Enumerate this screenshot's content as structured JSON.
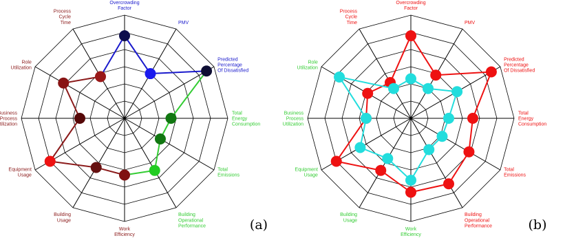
{
  "chart_data": [
    {
      "type": "radar",
      "panel_label": "(a)",
      "axes": [
        {
          "label": [
            "Overcrowding",
            "Factor"
          ],
          "color": "#1a1acc"
        },
        {
          "label": [
            "PMV"
          ],
          "color": "#1a1acc"
        },
        {
          "label": [
            "Predicted",
            "Percentage",
            "Of Dissatisfied"
          ],
          "color": "#1a1acc"
        },
        {
          "label": [
            "Total",
            "Energy",
            "Consumption"
          ],
          "color": "#33cc33"
        },
        {
          "label": [
            "Total",
            "Emissions"
          ],
          "color": "#33cc33"
        },
        {
          "label": [
            "Building",
            "Operational",
            "Performance"
          ],
          "color": "#33cc33"
        },
        {
          "label": [
            "Work",
            "Efficiency"
          ],
          "color": "#8b1a1a"
        },
        {
          "label": [
            "Building",
            "Usage"
          ],
          "color": "#8b1a1a"
        },
        {
          "label": [
            "Equipment",
            "Usage"
          ],
          "color": "#8b1a1a"
        },
        {
          "label": [
            "Business",
            "Process",
            "Utilization"
          ],
          "color": "#8b1a1a"
        },
        {
          "label": [
            "Role",
            "Utilization"
          ],
          "color": "#8b1a1a"
        },
        {
          "label": [
            "Process",
            "Cycle",
            "Time"
          ],
          "color": "#8b1a1a"
        }
      ],
      "scale": {
        "min": 0,
        "max": 6,
        "rings": 6
      },
      "series": [
        {
          "values": [
            4.8,
            3.0,
            5.5,
            2.7,
            2.4,
            3.5,
            3.3,
            3.3,
            5.0,
            2.6,
            4.1,
            2.8
          ],
          "point_colors": [
            "#0d0d4d",
            "#1a1aee",
            "#0d0d33",
            "#117711",
            "#117711",
            "#22cc22",
            "#801010",
            "#661111",
            "#ee1111",
            "#550808",
            "#881414",
            "#991818"
          ],
          "segment_colors": [
            "#1a1acc",
            "#1a1acc",
            "#33cc33",
            "#33cc33",
            "#33cc33",
            "#33cc33",
            "#8b1a1a",
            "#8b1a1a",
            "#8b1a1a",
            "#8b1a1a",
            "#8b1a1a",
            "#1a1acc"
          ]
        }
      ]
    },
    {
      "type": "radar",
      "panel_label": "(b)",
      "axes": [
        {
          "label": [
            "Overcrowding",
            "Factor"
          ],
          "color": "#ee1111"
        },
        {
          "label": [
            "PMV"
          ],
          "color": "#ee1111"
        },
        {
          "label": [
            "Predicted",
            "Percentage",
            "Of Dissatisfied"
          ],
          "color": "#ee1111"
        },
        {
          "label": [
            "Total",
            "Energy",
            "Consumption"
          ],
          "color": "#ee1111"
        },
        {
          "label": [
            "Total",
            "Emissions"
          ],
          "color": "#ee1111"
        },
        {
          "label": [
            "Building",
            "Operational",
            "Performance"
          ],
          "color": "#ee1111"
        },
        {
          "label": [
            "Work",
            "Efficiency"
          ],
          "color": "#33cc33"
        },
        {
          "label": [
            "Building",
            "Usage"
          ],
          "color": "#33cc33"
        },
        {
          "label": [
            "Equipment",
            "Usage"
          ],
          "color": "#33cc33"
        },
        {
          "label": [
            "Business",
            "Process",
            "Utilization"
          ],
          "color": "#33cc33"
        },
        {
          "label": [
            "Role",
            "Utilization"
          ],
          "color": "#33cc33"
        },
        {
          "label": [
            "Process",
            "Cycle",
            "Time"
          ],
          "color": "#ee1111"
        }
      ],
      "scale": {
        "min": 0,
        "max": 6,
        "rings": 6
      },
      "series": [
        {
          "values": [
            4.8,
            2.9,
            5.4,
            3.6,
            3.9,
            4.4,
            4.3,
            3.5,
            5.0,
            2.6,
            2.9,
            2.4
          ],
          "color": "#ee1111"
        },
        {
          "values": [
            2.3,
            2.0,
            3.1,
            2.2,
            2.1,
            2.1,
            3.6,
            2.7,
            3.4,
            2.6,
            4.8,
            2.0
          ],
          "color": "#22dddd"
        }
      ]
    }
  ]
}
